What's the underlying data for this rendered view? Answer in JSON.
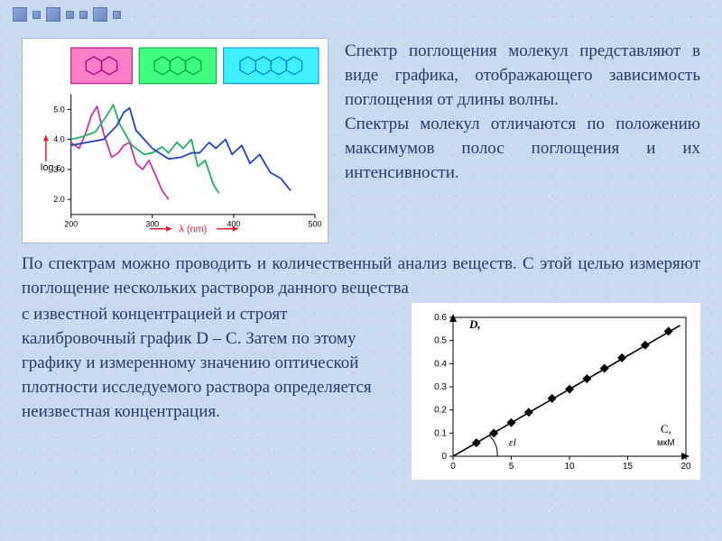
{
  "colors": {
    "text": "#223a6a",
    "bg": "#c8daf0",
    "chart_bg": "#ffffff",
    "axis": "#000000",
    "tick": "#000000",
    "mol1_fill": "#ff80c8",
    "mol1_stroke": "#aa0077",
    "mol2_fill": "#40ff80",
    "mol2_stroke": "#00a040",
    "mol3_fill": "#40f0ff",
    "mol3_stroke": "#0088cc",
    "line1": "#cc33aa",
    "line2": "#20b060",
    "line3": "#2040c0",
    "arrow_red": "#e02030",
    "calib_point": "#000000",
    "calib_line": "#000000"
  },
  "typography": {
    "body_fontsize": 19,
    "axis_fontsize": 9,
    "axis_fontfamily": "Arial"
  },
  "text": {
    "para1": "Спектр поглощения молекул представляют в виде графика, отображающего зависимость поглощения от длины волны.",
    "para2": "Спектры молекул отличаются по положению максимумов полос поглощения и их интенсивности.",
    "para3": "По спектрам можно проводить и количественный анализ веществ. С этой целью измеряют поглощение нескольких растворов данного вещества",
    "para4": "с известной концентрацией и строят калибровочный график D – C. Затем по этому графику и измеренному значению оптической плотности исследуемого раствора определяется неизвестная концентрация."
  },
  "chart1": {
    "type": "line-spectrum",
    "x_label": "λ (nm)",
    "y_label": "log ε",
    "xlim": [
      200,
      500
    ],
    "ylim": [
      1.5,
      5.5
    ],
    "xticks": [
      200,
      300,
      400,
      500
    ],
    "yticks": [
      2.0,
      3.0,
      4.0,
      5.0
    ],
    "molecules": [
      {
        "rings": 2,
        "fill_key": "mol1_fill",
        "stroke_key": "mol1_stroke"
      },
      {
        "rings": 3,
        "fill_key": "mol2_fill",
        "stroke_key": "mol2_stroke"
      },
      {
        "rings": 4,
        "fill_key": "mol3_fill",
        "stroke_key": "mol3_stroke"
      }
    ],
    "series": [
      {
        "color_key": "line1",
        "points": [
          [
            200,
            3.9
          ],
          [
            210,
            3.7
          ],
          [
            218,
            4.2
          ],
          [
            225,
            4.8
          ],
          [
            232,
            5.1
          ],
          [
            240,
            4.2
          ],
          [
            250,
            3.4
          ],
          [
            258,
            3.55
          ],
          [
            265,
            3.8
          ],
          [
            272,
            3.9
          ],
          [
            280,
            3.2
          ],
          [
            288,
            3.0
          ],
          [
            296,
            3.3
          ],
          [
            304,
            2.8
          ],
          [
            312,
            2.3
          ],
          [
            320,
            2.0
          ]
        ]
      },
      {
        "color_key": "line2",
        "points": [
          [
            200,
            4.0
          ],
          [
            215,
            4.1
          ],
          [
            230,
            4.25
          ],
          [
            244,
            4.8
          ],
          [
            252,
            5.15
          ],
          [
            260,
            4.5
          ],
          [
            275,
            3.8
          ],
          [
            290,
            3.5
          ],
          [
            300,
            3.55
          ],
          [
            312,
            3.75
          ],
          [
            320,
            3.55
          ],
          [
            330,
            3.9
          ],
          [
            338,
            3.7
          ],
          [
            348,
            4.0
          ],
          [
            356,
            3.1
          ],
          [
            365,
            3.3
          ],
          [
            375,
            2.5
          ],
          [
            382,
            2.2
          ]
        ]
      },
      {
        "color_key": "line3",
        "points": [
          [
            200,
            3.8
          ],
          [
            220,
            3.9
          ],
          [
            240,
            4.0
          ],
          [
            256,
            4.45
          ],
          [
            265,
            4.9
          ],
          [
            272,
            5.05
          ],
          [
            280,
            4.3
          ],
          [
            300,
            3.7
          ],
          [
            320,
            3.35
          ],
          [
            335,
            3.4
          ],
          [
            348,
            3.55
          ],
          [
            358,
            3.55
          ],
          [
            370,
            3.9
          ],
          [
            378,
            3.7
          ],
          [
            390,
            4.0
          ],
          [
            398,
            3.5
          ],
          [
            410,
            3.8
          ],
          [
            420,
            3.2
          ],
          [
            432,
            3.5
          ],
          [
            445,
            2.9
          ],
          [
            458,
            2.7
          ],
          [
            470,
            2.3
          ]
        ]
      }
    ]
  },
  "chart2": {
    "type": "scatter-line",
    "x_label": "C,",
    "x_unit": "мкМ",
    "y_label": "D,",
    "slope_label": "εl",
    "xlim": [
      0,
      20
    ],
    "ylim": [
      0,
      0.6
    ],
    "xticks": [
      0,
      5,
      10,
      15,
      20
    ],
    "yticks": [
      0,
      0.1,
      0.2,
      0.3,
      0.4,
      0.5,
      0.6
    ],
    "ytick_labels": [
      "0",
      "0.1",
      "0.2",
      "0.3",
      "0.4",
      "0.5",
      "0.6"
    ],
    "points": [
      [
        2.0,
        0.058
      ],
      [
        3.5,
        0.1
      ],
      [
        5.0,
        0.145
      ],
      [
        6.5,
        0.19
      ],
      [
        8.5,
        0.25
      ],
      [
        10.0,
        0.29
      ],
      [
        11.5,
        0.335
      ],
      [
        13.0,
        0.38
      ],
      [
        14.5,
        0.425
      ],
      [
        16.5,
        0.48
      ],
      [
        18.5,
        0.54
      ]
    ],
    "line": {
      "x1": 0,
      "y1": 0,
      "x2": 19.5,
      "y2": 0.565
    },
    "marker": "diamond",
    "marker_size": 5
  }
}
